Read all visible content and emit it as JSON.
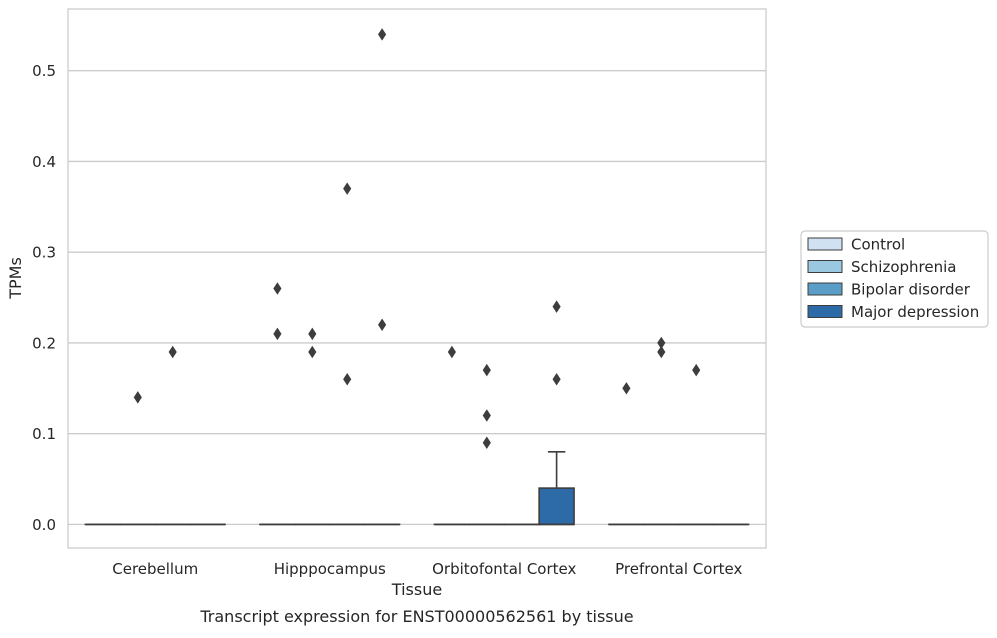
{
  "chart_data": {
    "type": "box",
    "title": "",
    "xlabel": "Tissue",
    "ylabel": "TPMs",
    "caption": "Transcript expression for ENST00000562561 by tissue",
    "categories": [
      "Cerebellum",
      "Hipppocampus",
      "Orbitofontal Cortex",
      "Prefrontal Cortex"
    ],
    "ylim": [
      -0.026,
      0.568
    ],
    "yticks": [
      0.0,
      0.1,
      0.2,
      0.3,
      0.4,
      0.5
    ],
    "ytick_labels": [
      "0.0",
      "0.1",
      "0.2",
      "0.3",
      "0.4",
      "0.5"
    ],
    "grid": "horizontal",
    "legend_position": "right",
    "series": [
      {
        "name": "Control",
        "color": "#d0e1f2",
        "boxes": [
          {
            "category": "Cerebellum",
            "q1": 0,
            "median": 0,
            "q3": 0,
            "whisker_low": 0,
            "whisker_high": 0,
            "outliers": []
          },
          {
            "category": "Hipppocampus",
            "q1": 0,
            "median": 0,
            "q3": 0,
            "whisker_low": 0,
            "whisker_high": 0,
            "outliers": [
              0.26,
              0.21
            ]
          },
          {
            "category": "Orbitofontal Cortex",
            "q1": 0,
            "median": 0,
            "q3": 0,
            "whisker_low": 0,
            "whisker_high": 0,
            "outliers": [
              0.19
            ]
          },
          {
            "category": "Prefrontal Cortex",
            "q1": 0,
            "median": 0,
            "q3": 0,
            "whisker_low": 0,
            "whisker_high": 0,
            "outliers": [
              0.15
            ]
          }
        ]
      },
      {
        "name": "Schizophrenia",
        "color": "#9ac8e0",
        "boxes": [
          {
            "category": "Cerebellum",
            "q1": 0,
            "median": 0,
            "q3": 0,
            "whisker_low": 0,
            "whisker_high": 0,
            "outliers": [
              0.14
            ]
          },
          {
            "category": "Hipppocampus",
            "q1": 0,
            "median": 0,
            "q3": 0,
            "whisker_low": 0,
            "whisker_high": 0,
            "outliers": [
              0.21,
              0.19
            ]
          },
          {
            "category": "Orbitofontal Cortex",
            "q1": 0,
            "median": 0,
            "q3": 0,
            "whisker_low": 0,
            "whisker_high": 0,
            "outliers": [
              0.17,
              0.12,
              0.09
            ]
          },
          {
            "category": "Prefrontal Cortex",
            "q1": 0,
            "median": 0,
            "q3": 0,
            "whisker_low": 0,
            "whisker_high": 0,
            "outliers": [
              0.2,
              0.19
            ]
          }
        ]
      },
      {
        "name": "Bipolar disorder",
        "color": "#5a9ec8",
        "boxes": [
          {
            "category": "Cerebellum",
            "q1": 0,
            "median": 0,
            "q3": 0,
            "whisker_low": 0,
            "whisker_high": 0,
            "outliers": [
              0.19
            ]
          },
          {
            "category": "Hipppocampus",
            "q1": 0,
            "median": 0,
            "q3": 0,
            "whisker_low": 0,
            "whisker_high": 0,
            "outliers": [
              0.37,
              0.16
            ]
          },
          {
            "category": "Orbitofontal Cortex",
            "q1": 0,
            "median": 0,
            "q3": 0,
            "whisker_low": 0,
            "whisker_high": 0,
            "outliers": []
          },
          {
            "category": "Prefrontal Cortex",
            "q1": 0,
            "median": 0,
            "q3": 0,
            "whisker_low": 0,
            "whisker_high": 0,
            "outliers": [
              0.17
            ]
          }
        ]
      },
      {
        "name": "Major depression",
        "color": "#2c6aa8",
        "boxes": [
          {
            "category": "Cerebellum",
            "q1": 0,
            "median": 0,
            "q3": 0,
            "whisker_low": 0,
            "whisker_high": 0,
            "outliers": []
          },
          {
            "category": "Hipppocampus",
            "q1": 0,
            "median": 0,
            "q3": 0,
            "whisker_low": 0,
            "whisker_high": 0,
            "outliers": [
              0.54,
              0.22
            ]
          },
          {
            "category": "Orbitofontal Cortex",
            "q1": 0,
            "median": 0,
            "q3": 0.04,
            "whisker_low": 0,
            "whisker_high": 0.08,
            "outliers": [
              0.24,
              0.16
            ]
          },
          {
            "category": "Prefrontal Cortex",
            "q1": 0,
            "median": 0,
            "q3": 0,
            "whisker_low": 0,
            "whisker_high": 0,
            "outliers": []
          }
        ]
      }
    ]
  }
}
